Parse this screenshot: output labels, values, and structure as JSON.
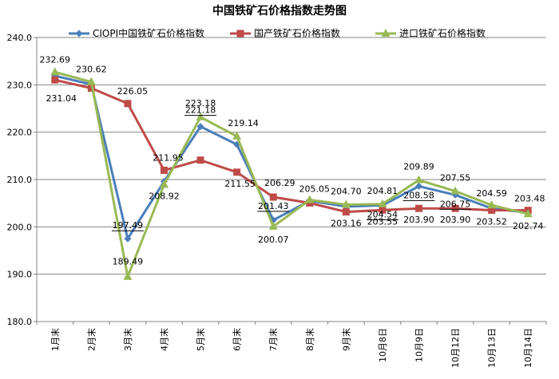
{
  "chart_data": {
    "type": "line",
    "title": "中国铁矿石价格指数走势图",
    "categories": [
      "1月末",
      "2月末",
      "3月末",
      "4月末",
      "5月末",
      "6月末",
      "7月末",
      "8月末",
      "9月末",
      "10月8日",
      "10月9日",
      "10月12日",
      "10月13日",
      "10月14日"
    ],
    "ylim": [
      180,
      240
    ],
    "yticks": [
      "180.0",
      "190.0",
      "200.0",
      "210.0",
      "220.0",
      "230.0",
      "240.0"
    ],
    "grid": true,
    "legend_position": "top",
    "series": [
      {
        "name": "CIOPI中国铁矿石价格指数",
        "color": "#4a7ebb",
        "marker": "diamond",
        "values": [
          231.9,
          230.1,
          197.49,
          209.6,
          221.18,
          217.4,
          201.43,
          205.5,
          204.3,
          204.54,
          208.58,
          206.75,
          203.9,
          203.0
        ],
        "labels": [
          null,
          null,
          "197.49",
          null,
          "221.18",
          null,
          "201.43",
          null,
          null,
          "204.54",
          "208.58",
          "206.75",
          null,
          null
        ]
      },
      {
        "name": "国产铁矿石价格指数",
        "color": "#be4b48",
        "marker": "square",
        "values": [
          231.04,
          229.3,
          226.05,
          211.95,
          214.1,
          211.55,
          206.29,
          205.05,
          203.16,
          203.55,
          203.9,
          203.9,
          203.52,
          203.48
        ],
        "labels": [
          "231.04",
          null,
          "226.05",
          "211.95",
          null,
          "211.55",
          "206.29",
          "205.05",
          "203.16",
          "203.55",
          "203.90",
          "203.90",
          "203.52",
          "203.48"
        ]
      },
      {
        "name": "进口铁矿石价格指数",
        "color": "#98b954",
        "marker": "triangle",
        "values": [
          232.69,
          230.62,
          189.49,
          208.92,
          223.18,
          219.14,
          200.07,
          205.7,
          204.7,
          204.81,
          209.89,
          207.55,
          204.59,
          202.74
        ],
        "labels": [
          "232.69",
          "230.62",
          "189.49",
          "208.92",
          "223.18",
          "219.14",
          "200.07",
          null,
          "204.70",
          "204.81",
          "209.89",
          "207.55",
          "204.59",
          "202.74"
        ]
      }
    ]
  }
}
